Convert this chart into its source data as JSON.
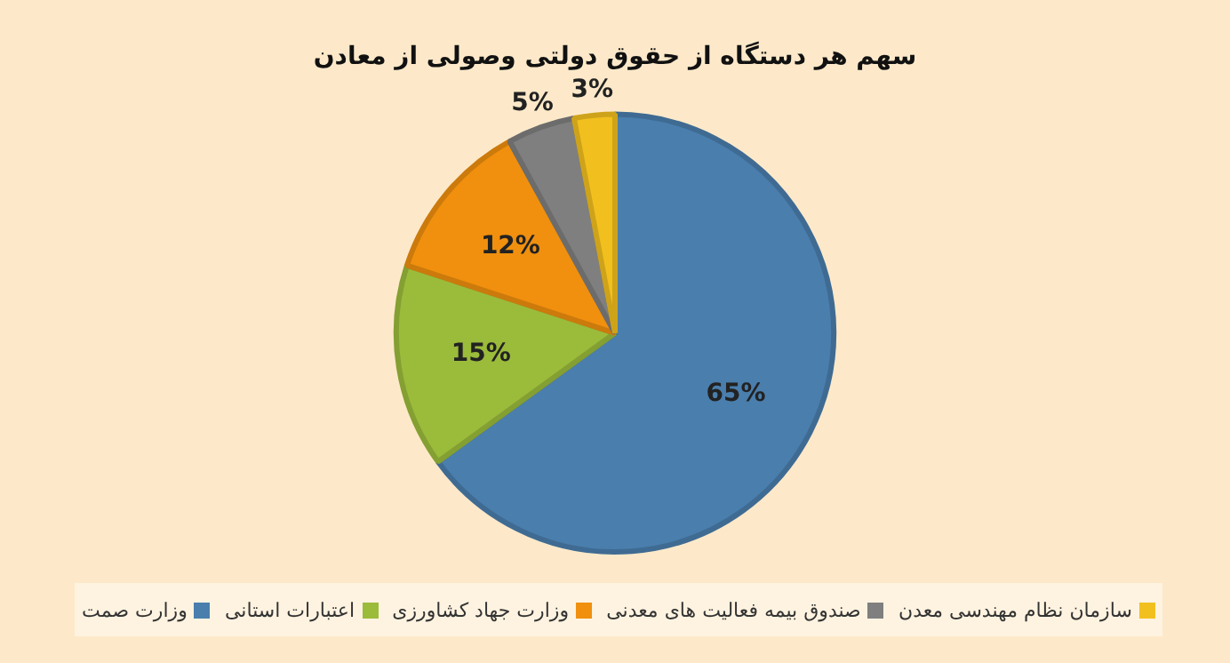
{
  "chart_data": {
    "type": "pie",
    "title": "سهم هر دستگاه از حقوق دولتی وصولی از معادن",
    "categories": [
      "وزارت صمت",
      "اعتبارات استانی",
      "وزارت جهاد کشاورزی",
      "صندوق بیمه  فعالیت های معدنی",
      "سازمان نظام مهندسی معدن"
    ],
    "values": [
      65,
      15,
      12,
      5,
      3
    ],
    "colors": [
      "#4a7ead",
      "#9bbb3b",
      "#f0900e",
      "#7f7f7f",
      "#f2c01e"
    ],
    "value_labels": [
      "65%",
      "15%",
      "12%",
      "5%",
      "3%"
    ],
    "legend": "bottom"
  }
}
